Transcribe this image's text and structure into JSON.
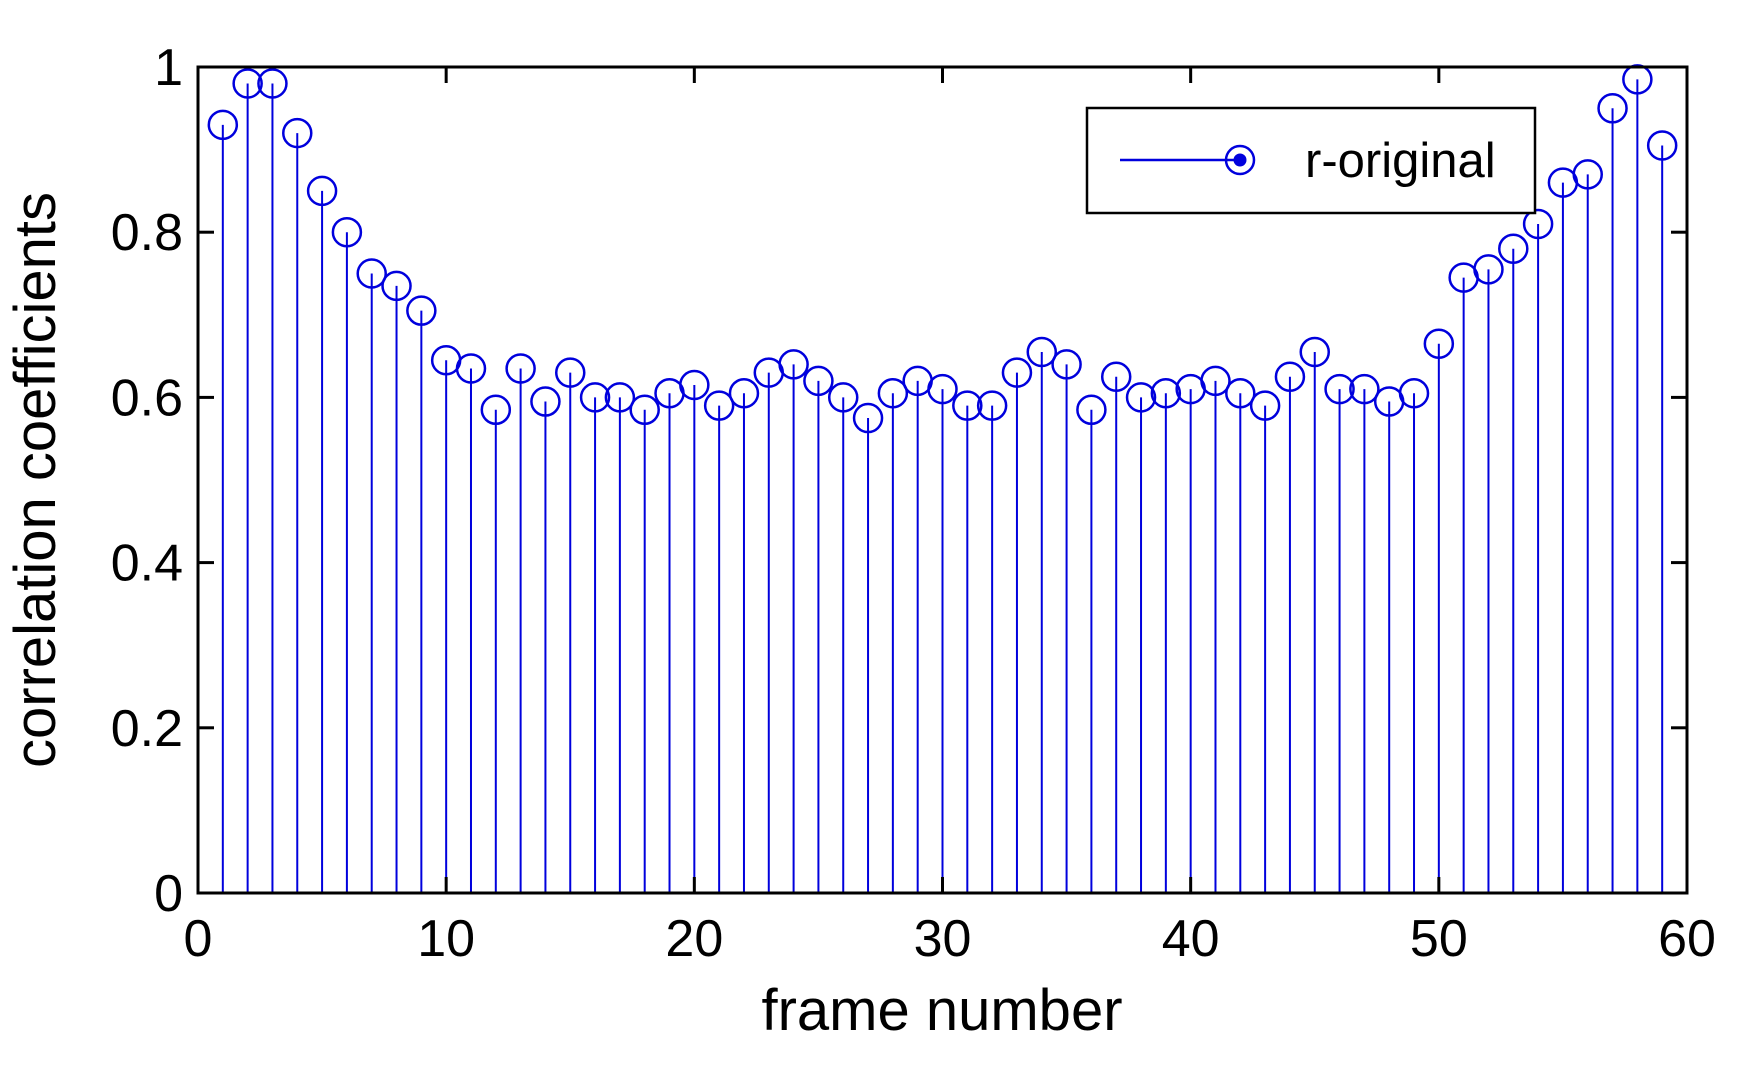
{
  "figure": {
    "background": "#ffffff",
    "stem_color": "#0000dd",
    "axis_color": "#000000",
    "legend_border_color": "#000000",
    "legend_fill": "#ffffff"
  },
  "chart_data": {
    "type": "stem",
    "title": "",
    "xlabel": "frame number",
    "ylabel": "correlation coefficients",
    "xlim": [
      0,
      60
    ],
    "ylim": [
      0,
      1
    ],
    "x_ticks": [
      0,
      10,
      20,
      30,
      40,
      50,
      60
    ],
    "x_tick_labels": [
      "0",
      "10",
      "20",
      "30",
      "40",
      "50",
      "60"
    ],
    "y_ticks": [
      0,
      0.2,
      0.4,
      0.6,
      0.8,
      1
    ],
    "y_tick_labels": [
      "0",
      "0.2",
      "0.4",
      "0.6",
      "0.8",
      "1"
    ],
    "grid": false,
    "legend": {
      "position": "top-right",
      "entries": [
        {
          "label": "r-original",
          "marker": "stem-line-with-circle-marker",
          "color": "#0000dd"
        }
      ]
    },
    "series": [
      {
        "name": "r-original",
        "x": [
          1,
          2,
          3,
          4,
          5,
          6,
          7,
          8,
          9,
          10,
          11,
          12,
          13,
          14,
          15,
          16,
          17,
          18,
          19,
          20,
          21,
          22,
          23,
          24,
          25,
          26,
          27,
          28,
          29,
          30,
          31,
          32,
          33,
          34,
          35,
          36,
          37,
          38,
          39,
          40,
          41,
          42,
          43,
          44,
          45,
          46,
          47,
          48,
          49,
          50,
          51,
          52,
          53,
          54,
          55,
          56,
          57,
          58,
          59
        ],
        "values": [
          0.93,
          0.98,
          0.98,
          0.92,
          0.85,
          0.8,
          0.75,
          0.735,
          0.705,
          0.645,
          0.635,
          0.585,
          0.635,
          0.595,
          0.63,
          0.6,
          0.6,
          0.585,
          0.605,
          0.615,
          0.59,
          0.605,
          0.63,
          0.64,
          0.62,
          0.6,
          0.575,
          0.605,
          0.62,
          0.61,
          0.59,
          0.59,
          0.63,
          0.655,
          0.64,
          0.585,
          0.625,
          0.6,
          0.605,
          0.61,
          0.62,
          0.605,
          0.59,
          0.625,
          0.655,
          0.61,
          0.61,
          0.595,
          0.605,
          0.665,
          0.745,
          0.755,
          0.78,
          0.81,
          0.86,
          0.87,
          0.95,
          0.985,
          0.905
        ]
      }
    ]
  }
}
